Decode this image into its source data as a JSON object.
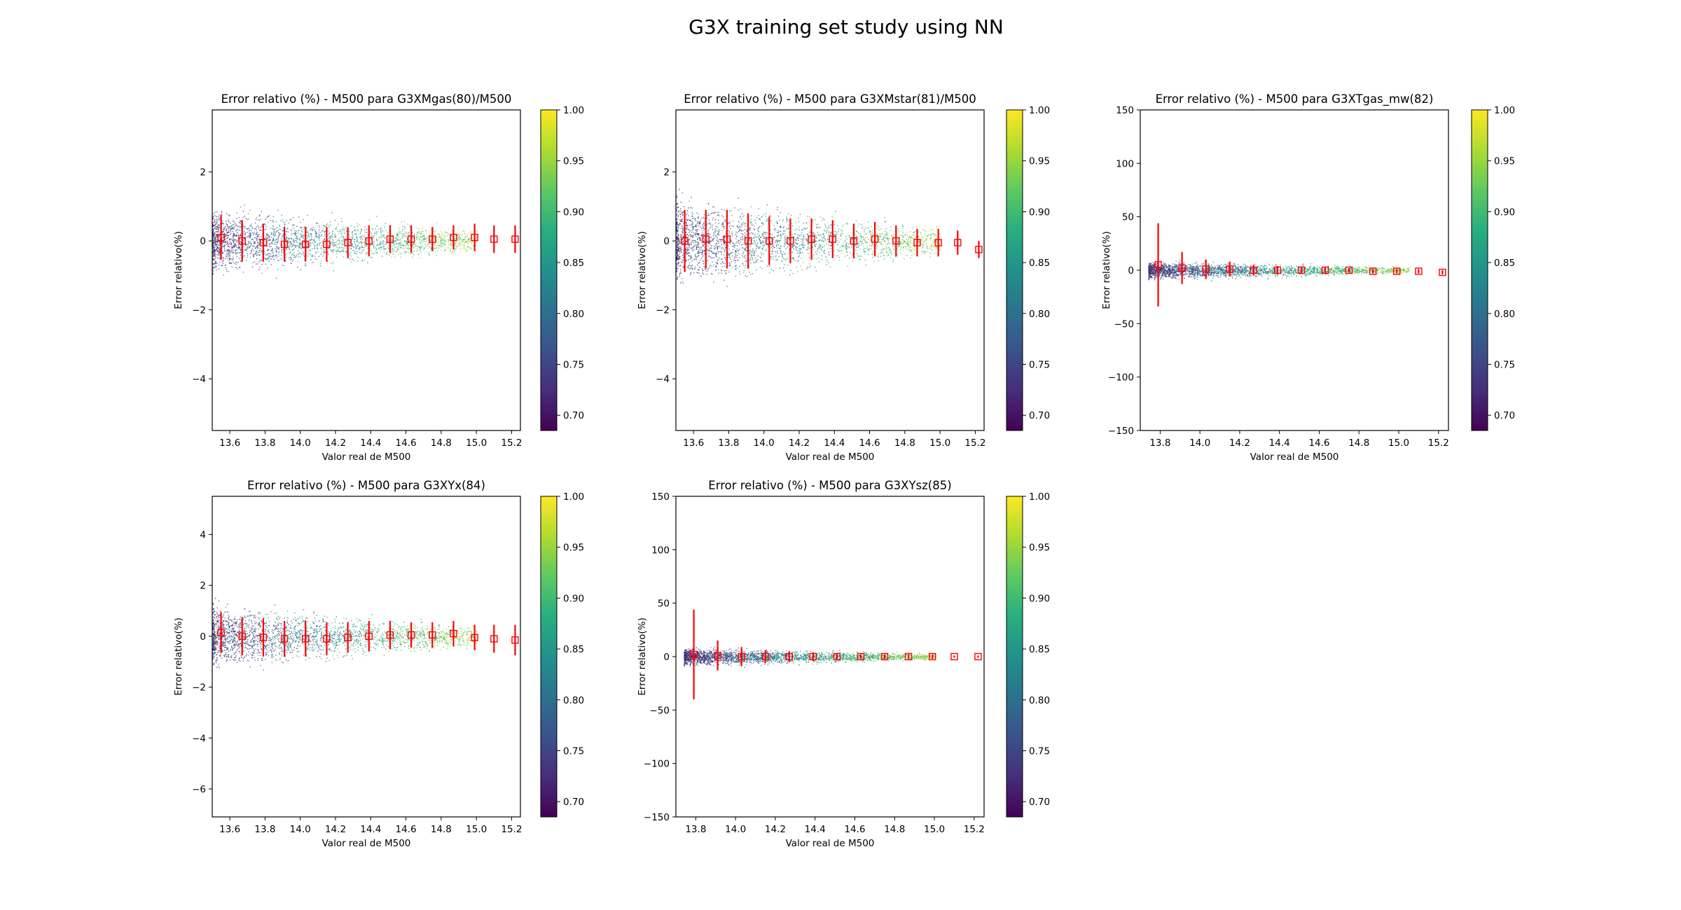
{
  "suptitle": "G3X training set study using NN",
  "chart_data": [
    {
      "type": "scatter",
      "title": "Error relativo (%) - M500 para G3XMgas(80)/M500",
      "xlabel": "Valor real de M500",
      "ylabel": "Error relativo(%)",
      "xlim": [
        13.5,
        15.25
      ],
      "ylim": [
        -5.5,
        3.8
      ],
      "xticks": [
        13.6,
        13.8,
        14.0,
        14.2,
        14.4,
        14.6,
        14.8,
        15.0,
        15.2
      ],
      "yticks": [
        -4,
        -2,
        0,
        2
      ],
      "scatter_x_range": [
        13.5,
        15.0
      ],
      "scatter_spread_pct": 1.0,
      "colorbar": {
        "min": 0.685,
        "max": 1.0,
        "ticks": [
          0.7,
          0.75,
          0.8,
          0.85,
          0.9,
          0.95,
          1.0
        ],
        "colormap": "viridis"
      },
      "binned_means": {
        "name": "",
        "color": "#ff0000",
        "x": [
          13.55,
          13.67,
          13.79,
          13.91,
          14.03,
          14.15,
          14.27,
          14.39,
          14.51,
          14.63,
          14.75,
          14.87,
          14.99,
          15.1,
          15.22
        ],
        "y": [
          0.1,
          0.0,
          -0.05,
          -0.1,
          -0.1,
          -0.1,
          -0.05,
          0.0,
          0.05,
          0.05,
          0.05,
          0.1,
          0.1,
          0.05,
          0.05
        ],
        "err": [
          0.65,
          0.6,
          0.55,
          0.5,
          0.5,
          0.5,
          0.45,
          0.45,
          0.4,
          0.4,
          0.35,
          0.35,
          0.4,
          0.4,
          0.4
        ]
      }
    },
    {
      "type": "scatter",
      "title": "Error relativo (%) - M500 para G3XMstar(81)/M500",
      "xlabel": "Valor real de M500",
      "ylabel": "Error relativo(%)",
      "xlim": [
        13.5,
        15.25
      ],
      "ylim": [
        -5.5,
        3.8
      ],
      "xticks": [
        13.6,
        13.8,
        14.0,
        14.2,
        14.4,
        14.6,
        14.8,
        15.0,
        15.2
      ],
      "yticks": [
        -4,
        -2,
        0,
        2
      ],
      "scatter_x_range": [
        13.5,
        15.0
      ],
      "scatter_spread_pct": 1.3,
      "colorbar": {
        "min": 0.685,
        "max": 1.0,
        "ticks": [
          0.7,
          0.75,
          0.8,
          0.85,
          0.9,
          0.95,
          1.0
        ],
        "colormap": "viridis"
      },
      "binned_means": {
        "name": "",
        "color": "#ff0000",
        "x": [
          13.55,
          13.67,
          13.79,
          13.91,
          14.03,
          14.15,
          14.27,
          14.39,
          14.51,
          14.63,
          14.75,
          14.87,
          14.99,
          15.1,
          15.22
        ],
        "y": [
          0.0,
          0.05,
          0.05,
          0.0,
          0.0,
          0.0,
          0.05,
          0.05,
          0.0,
          0.05,
          0.0,
          -0.05,
          -0.05,
          -0.05,
          -0.25
        ],
        "err": [
          0.9,
          0.85,
          0.85,
          0.8,
          0.7,
          0.65,
          0.6,
          0.55,
          0.5,
          0.5,
          0.45,
          0.4,
          0.4,
          0.35,
          0.25
        ]
      }
    },
    {
      "type": "scatter",
      "title": "Error relativo (%) - M500 para G3XTgas_mw(82)",
      "xlabel": "Valor real de M500",
      "ylabel": "Error relativo(%)",
      "xlim": [
        13.7,
        15.25
      ],
      "ylim": [
        -150,
        150
      ],
      "xticks": [
        13.8,
        14.0,
        14.2,
        14.4,
        14.6,
        14.8,
        15.0,
        15.2
      ],
      "yticks": [
        -150,
        -100,
        -50,
        0,
        50,
        100,
        150
      ],
      "scatter_x_range": [
        13.74,
        15.05
      ],
      "scatter_spread_pct": 9,
      "colorbar": {
        "min": 0.685,
        "max": 1.0,
        "ticks": [
          0.7,
          0.75,
          0.8,
          0.85,
          0.9,
          0.95,
          1.0
        ],
        "colormap": "viridis"
      },
      "binned_means": {
        "name": "",
        "color": "#ff0000",
        "x": [
          13.79,
          13.91,
          14.03,
          14.15,
          14.27,
          14.39,
          14.51,
          14.63,
          14.75,
          14.87,
          14.99,
          15.1,
          15.22
        ],
        "y": [
          5,
          2,
          1,
          1,
          0,
          0,
          0,
          0,
          0,
          -1,
          -1,
          -1,
          -2
        ],
        "err": [
          39,
          15,
          9,
          7,
          5,
          4,
          3,
          3,
          2,
          2,
          2,
          2,
          2
        ]
      }
    },
    {
      "type": "scatter",
      "title": "Error relativo (%) - M500 para G3XYx(84)",
      "xlabel": "Valor real de M500",
      "ylabel": "Error relativo(%)",
      "xlim": [
        13.5,
        15.25
      ],
      "ylim": [
        -7.1,
        5.5
      ],
      "xticks": [
        13.6,
        13.8,
        14.0,
        14.2,
        14.4,
        14.6,
        14.8,
        15.0,
        15.2
      ],
      "yticks": [
        -6,
        -4,
        -2,
        0,
        2,
        4
      ],
      "scatter_x_range": [
        13.5,
        15.0
      ],
      "scatter_spread_pct": 1.3,
      "colorbar": {
        "min": 0.685,
        "max": 1.0,
        "ticks": [
          0.7,
          0.75,
          0.8,
          0.85,
          0.9,
          0.95,
          1.0
        ],
        "colormap": "viridis"
      },
      "binned_means": {
        "name": "",
        "color": "#ff0000",
        "x": [
          13.55,
          13.67,
          13.79,
          13.91,
          14.03,
          14.15,
          14.27,
          14.39,
          14.51,
          14.63,
          14.75,
          14.87,
          14.99,
          15.1,
          15.22
        ],
        "y": [
          0.15,
          0.0,
          -0.05,
          -0.1,
          -0.1,
          -0.1,
          -0.05,
          0.0,
          0.05,
          0.05,
          0.05,
          0.1,
          -0.05,
          -0.1,
          -0.15
        ],
        "err": [
          0.8,
          0.75,
          0.75,
          0.7,
          0.7,
          0.65,
          0.6,
          0.6,
          0.55,
          0.5,
          0.5,
          0.5,
          0.5,
          0.55,
          0.6
        ]
      }
    },
    {
      "type": "scatter",
      "title": "Error relativo (%) - M500 para G3XYsz(85)",
      "xlabel": "Valor real de M500",
      "ylabel": "Error relativo(%)",
      "xlim": [
        13.7,
        15.25
      ],
      "ylim": [
        -150,
        150
      ],
      "xticks": [
        13.8,
        14.0,
        14.2,
        14.4,
        14.6,
        14.8,
        15.0,
        15.2
      ],
      "yticks": [
        -150,
        -100,
        -50,
        0,
        50,
        100,
        150
      ],
      "scatter_x_range": [
        13.74,
        15.0
      ],
      "scatter_spread_pct": 9,
      "colorbar": {
        "min": 0.685,
        "max": 1.0,
        "ticks": [
          0.7,
          0.75,
          0.8,
          0.85,
          0.9,
          0.95,
          1.0
        ],
        "colormap": "viridis"
      },
      "binned_means": {
        "name": "",
        "color": "#ff0000",
        "x": [
          13.79,
          13.91,
          14.03,
          14.15,
          14.27,
          14.39,
          14.51,
          14.63,
          14.75,
          14.87,
          14.99,
          15.1,
          15.22
        ],
        "y": [
          2,
          1,
          0,
          0,
          0,
          0,
          0,
          0,
          0,
          0,
          0,
          0,
          0
        ],
        "err": [
          42,
          14,
          9,
          6,
          5,
          4,
          3,
          2,
          2,
          2,
          2,
          1,
          1
        ]
      }
    }
  ]
}
